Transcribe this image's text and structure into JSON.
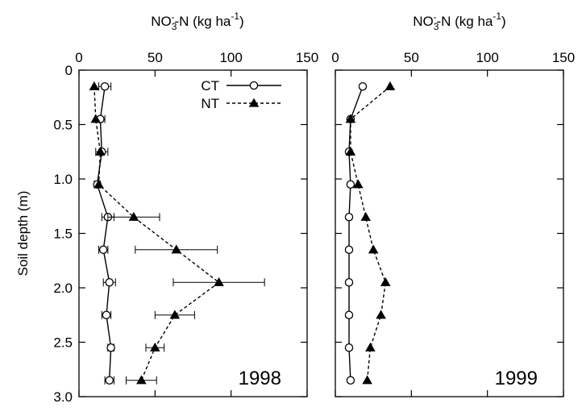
{
  "chart_data": [
    {
      "type": "line",
      "title": "",
      "top_axis_label": {
        "main": "NO",
        "sub": "3",
        "sup": "-",
        "rest": "-N (kg ha",
        "unit_sup": "-1",
        "close": ")"
      },
      "ylabel": "Soil depth (m)",
      "xlim": [
        0,
        150
      ],
      "ylim": [
        0,
        3.0
      ],
      "y_inverted": true,
      "x_ticks": [
        "0",
        "50",
        "100",
        "150"
      ],
      "y_ticks": [
        "0",
        "0.5",
        "1.0",
        "1.5",
        "2.0",
        "2.5",
        "3.0"
      ],
      "panel_label": "1998",
      "legend": {
        "position": "top-right",
        "entries": [
          "CT",
          "NT"
        ]
      },
      "series": [
        {
          "name": "CT",
          "marker": "open-circle",
          "line": "solid",
          "depth": [
            0.15,
            0.45,
            0.75,
            1.05,
            1.35,
            1.65,
            1.95,
            2.25,
            2.55,
            2.85
          ],
          "values": [
            17,
            14,
            15,
            12,
            19,
            16,
            20,
            18,
            21,
            20
          ],
          "error": [
            4,
            3,
            4,
            2,
            4,
            3,
            4,
            3,
            2,
            3
          ]
        },
        {
          "name": "NT",
          "marker": "filled-triangle",
          "line": "dashed",
          "depth": [
            0.15,
            0.45,
            0.75,
            1.05,
            1.35,
            1.65,
            1.95,
            2.25,
            2.55,
            2.85
          ],
          "values": [
            10,
            11,
            14,
            13,
            36,
            64,
            92,
            63,
            50,
            41
          ],
          "error": [
            0,
            0,
            0,
            0,
            17,
            27,
            30,
            13,
            6,
            10
          ]
        }
      ]
    },
    {
      "type": "line",
      "title": "",
      "top_axis_label": {
        "main": "NO",
        "sub": "3",
        "sup": "-",
        "rest": "-N (kg ha",
        "unit_sup": "-1",
        "close": ")"
      },
      "xlim": [
        0,
        150
      ],
      "ylim": [
        0,
        3.0
      ],
      "y_inverted": true,
      "x_ticks": [
        "0",
        "50",
        "100",
        "150"
      ],
      "panel_label": "1999",
      "series": [
        {
          "name": "CT",
          "marker": "open-circle",
          "line": "solid",
          "depth": [
            0.15,
            0.45,
            0.75,
            1.05,
            1.35,
            1.65,
            1.95,
            2.25,
            2.55,
            2.85
          ],
          "values": [
            18,
            10,
            9,
            10,
            9,
            9,
            9,
            9,
            9,
            10
          ]
        },
        {
          "name": "NT",
          "marker": "filled-triangle",
          "line": "dashed",
          "depth": [
            0.15,
            0.45,
            0.75,
            1.05,
            1.35,
            1.65,
            1.95,
            2.25,
            2.55,
            2.85
          ],
          "values": [
            36,
            10,
            10,
            15,
            20,
            25,
            33,
            30,
            23,
            21
          ]
        }
      ]
    }
  ]
}
